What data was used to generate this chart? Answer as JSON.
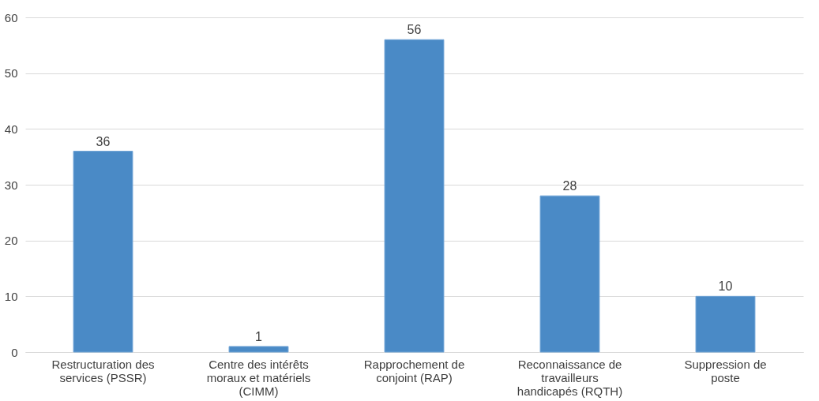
{
  "chart_data": {
    "type": "bar",
    "categories": [
      "Restructuration des services (PSSR)",
      "Centre des intérêts moraux et matériels (CIMM)",
      "Rapprochement de conjoint (RAP)",
      "Reconnaissance de travailleurs handicapés (RQTH)",
      "Suppression de poste"
    ],
    "values": [
      36,
      1,
      56,
      28,
      10
    ],
    "color": "#4a8ac6",
    "ylim": [
      0,
      60
    ],
    "yticks": [
      0,
      10,
      20,
      30,
      40,
      50,
      60
    ],
    "grid": "y",
    "data_labels": true
  }
}
